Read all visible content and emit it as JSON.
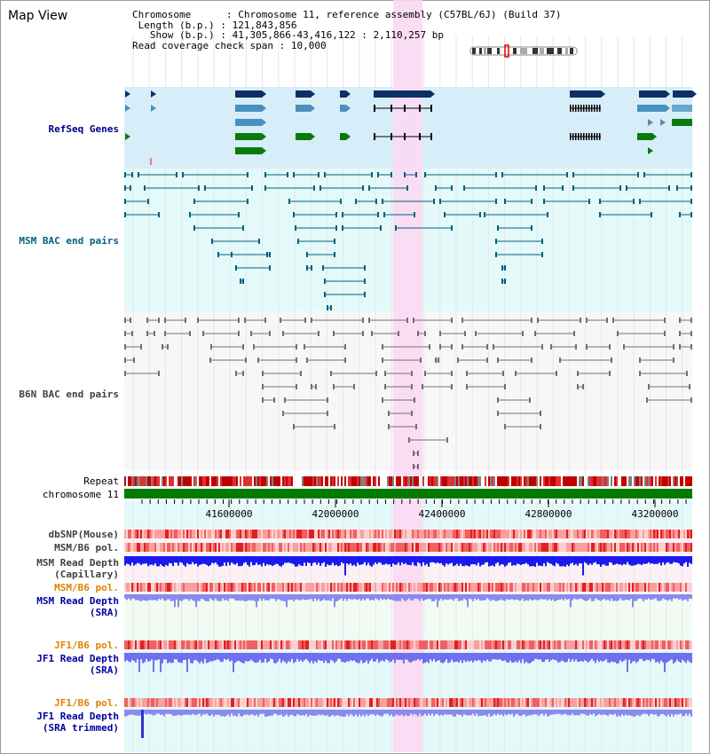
{
  "map_title": "Map View",
  "info": {
    "chromosome_label": "Chromosome",
    "chromosome_value": "Chromosome 11, reference assembly (C57BL/6J) (Build 37)",
    "length_label": "Length (b.p.)",
    "length_value": "121,843,856",
    "show_label": "Show (b.p.)",
    "show_value": "41,305,866-43,416,122 : 2,110,257 bp",
    "coverage_label": "Read coverage check span",
    "coverage_value": "10,000"
  },
  "tracks": {
    "refseq": "RefSeq Genes",
    "msm_bac": "MSM BAC end pairs",
    "b6n_bac": "B6N BAC end pairs",
    "repeat": "Repeat",
    "chromosome": "chromosome 11",
    "dbsnp": "dbSNP(Mouse)",
    "msm_b6_pol": "MSM/B6 pol.",
    "msm_depth_cap_1": "MSM Read Depth",
    "msm_depth_cap_2": "(Capillary)",
    "msm_b6_pol_sra": "MSM/B6 pol.",
    "msm_depth_sra_1": "MSM Read Depth",
    "msm_depth_sra_2": "(SRA)",
    "jf1_b6_pol": "JF1/B6 pol.",
    "jf1_depth_1": "JF1 Read Depth",
    "jf1_depth_2": "(SRA)",
    "jf1_b6_pol_trim": "JF1/B6 pol.",
    "jf1_depth_trim_1": "JF1 Read Depth",
    "jf1_depth_trim_2": "(SRA trimmed)"
  },
  "axis_ticks": [
    "41600000",
    "42000000",
    "42400000",
    "42800000",
    "43200000"
  ],
  "colors": {
    "refseq_label": "#00008b",
    "msm_label": "#006080",
    "b6n_label": "#404040",
    "orange_label": "#e08000",
    "blue_label": "#0000a0",
    "highlight": "#f9d9f3",
    "refseq_bg": "#d6eefa",
    "panel_bg": "#e4f9f9",
    "chrom_green": "#007a00"
  }
}
